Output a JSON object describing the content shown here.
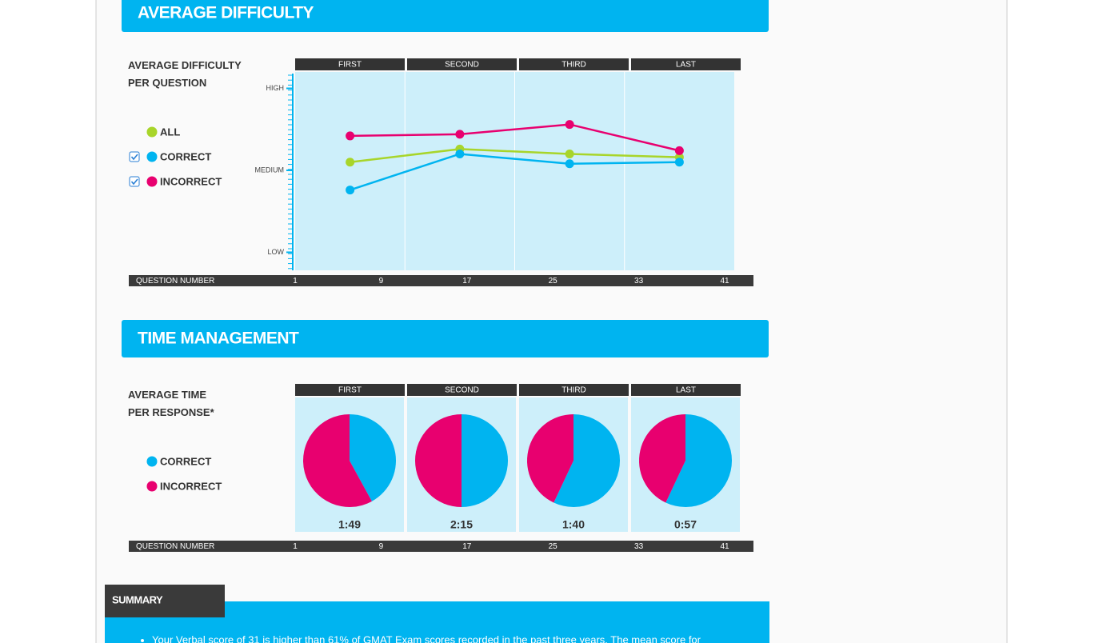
{
  "difficulty_section": {
    "title": "AVERAGE DIFFICULTY",
    "question_strip": {
      "label": "QUESTION NUMBER",
      "numbers": [
        1,
        9,
        17,
        25,
        33,
        41
      ]
    }
  },
  "time_section": {
    "title": "TIME MANAGEMENT",
    "question_strip": {
      "label": "QUESTION NUMBER",
      "numbers": [
        1,
        9,
        17,
        25,
        33,
        41
      ]
    }
  },
  "chart_data": [
    {
      "type": "line",
      "title": "AVERAGE DIFFICULTY PER QUESTION",
      "categories": [
        "FIRST",
        "SECOND",
        "THIRD",
        "LAST"
      ],
      "series": [
        {
          "name": "ALL",
          "color": "#a8d52a",
          "values": [
            55,
            63,
            60,
            58
          ]
        },
        {
          "name": "CORRECT",
          "color": "#00b4f0",
          "values": [
            38,
            60,
            54,
            55
          ],
          "checked": true
        },
        {
          "name": "INCORRECT",
          "color": "#e8006f",
          "values": [
            71,
            72,
            78,
            62
          ],
          "checked": true
        }
      ],
      "ylim": [
        -11,
        110
      ],
      "yticks": [
        {
          "value": 0,
          "label": "LOW"
        },
        {
          "value": 50,
          "label": "MEDIUM"
        },
        {
          "value": 100,
          "label": "HIGH"
        }
      ]
    },
    {
      "type": "pie",
      "title": "AVERAGE TIME PER RESPONSE*",
      "categories": [
        "FIRST",
        "SECOND",
        "THIRD",
        "LAST"
      ],
      "series": [
        {
          "name": "CORRECT",
          "color": "#00b4f0",
          "values": [
            42,
            50,
            57,
            57
          ]
        },
        {
          "name": "INCORRECT",
          "color": "#e8006f",
          "values": [
            58,
            50,
            43,
            43
          ]
        }
      ],
      "time_labels": [
        "1:49",
        "2:15",
        "1:40",
        "0:57"
      ]
    }
  ],
  "summary": {
    "title": "SUMMARY",
    "text": "Your Verbal score of 31 is higher than 61% of GMAT Exam scores recorded in the past three years. The mean score for"
  }
}
